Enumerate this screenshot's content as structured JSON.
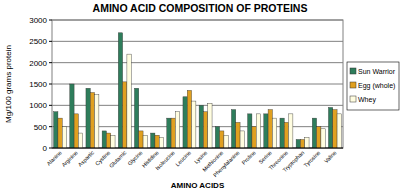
{
  "chart_data": {
    "type": "bar",
    "title": "AMINO ACID COMPOSITION OF PROTEINS",
    "x_label": "AMINO ACIDS",
    "y_label": "Mg/100 grams protein",
    "categories": [
      "Alanine",
      "Arginine",
      "Aspartic",
      "Cystine",
      "Glutamic",
      "Glycine",
      "Histidine",
      "Isoleucine",
      "Leucine",
      "Lysine",
      "Methionine",
      "Phenylalanine",
      "Proline",
      "Serine",
      "Threonine",
      "Tryptophan",
      "Tyrosine",
      "Valine"
    ],
    "series": [
      {
        "name": "Sun Warrior",
        "color": "#2e7d5b",
        "values": [
          850,
          1500,
          1400,
          400,
          2700,
          1400,
          350,
          700,
          1200,
          1000,
          500,
          900,
          800,
          800,
          700,
          200,
          700,
          950
        ]
      },
      {
        "name": "Egg (whole)",
        "color": "#e0a020",
        "values": [
          700,
          800,
          1300,
          350,
          1550,
          400,
          300,
          700,
          1350,
          850,
          400,
          600,
          500,
          900,
          600,
          200,
          500,
          900
        ]
      },
      {
        "name": "Whey",
        "color": "#fffde0",
        "values": [
          500,
          350,
          1250,
          300,
          2200,
          300,
          250,
          850,
          1100,
          1050,
          300,
          400,
          800,
          700,
          800,
          250,
          450,
          800
        ]
      }
    ],
    "ylim": [
      0,
      3000
    ],
    "yticks": [
      0,
      500,
      1000,
      1500,
      2000,
      2500,
      3000
    ],
    "grid": true,
    "legend": "right"
  }
}
